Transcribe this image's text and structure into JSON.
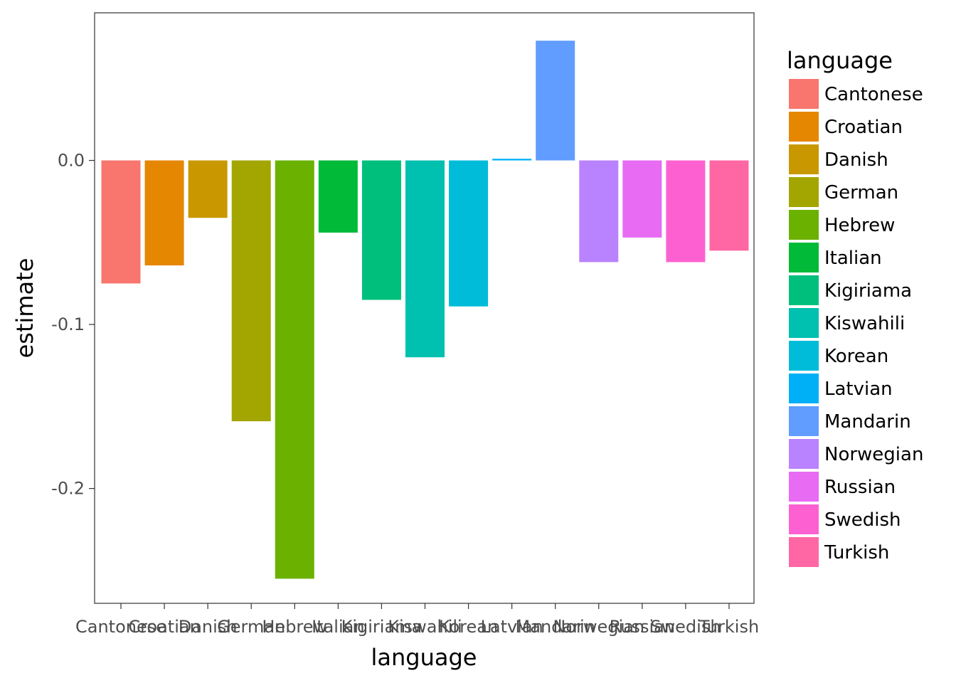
{
  "chart_data": {
    "type": "bar",
    "xlabel": "language",
    "ylabel": "estimate",
    "ylim": [
      -0.27,
      0.09
    ],
    "yticks": [
      0.0,
      -0.1,
      -0.2
    ],
    "ytick_labels": [
      "0.0",
      "-0.1",
      "-0.2"
    ],
    "grid": false,
    "legend_title": "language",
    "legend_position": "right",
    "categories": [
      "Cantonese",
      "Croatian",
      "Danish",
      "German",
      "Hebrew",
      "Italian",
      "Kigiriama",
      "Kiswahili",
      "Korean",
      "Latvian",
      "Mandarin",
      "Norwegian",
      "Russian",
      "Swedish",
      "Turkish"
    ],
    "values": [
      -0.075,
      -0.064,
      -0.035,
      -0.159,
      -0.255,
      -0.044,
      -0.085,
      -0.12,
      -0.089,
      0.001,
      0.073,
      -0.062,
      -0.047,
      -0.062,
      -0.055
    ],
    "colors": [
      "#F8766D",
      "#E58700",
      "#C99800",
      "#A3A500",
      "#6BB100",
      "#00BA38",
      "#00BF7D",
      "#00C0AF",
      "#00BCD8",
      "#00B0F6",
      "#619CFF",
      "#B983FF",
      "#E76BF3",
      "#FD61D1",
      "#FF67A4"
    ]
  }
}
